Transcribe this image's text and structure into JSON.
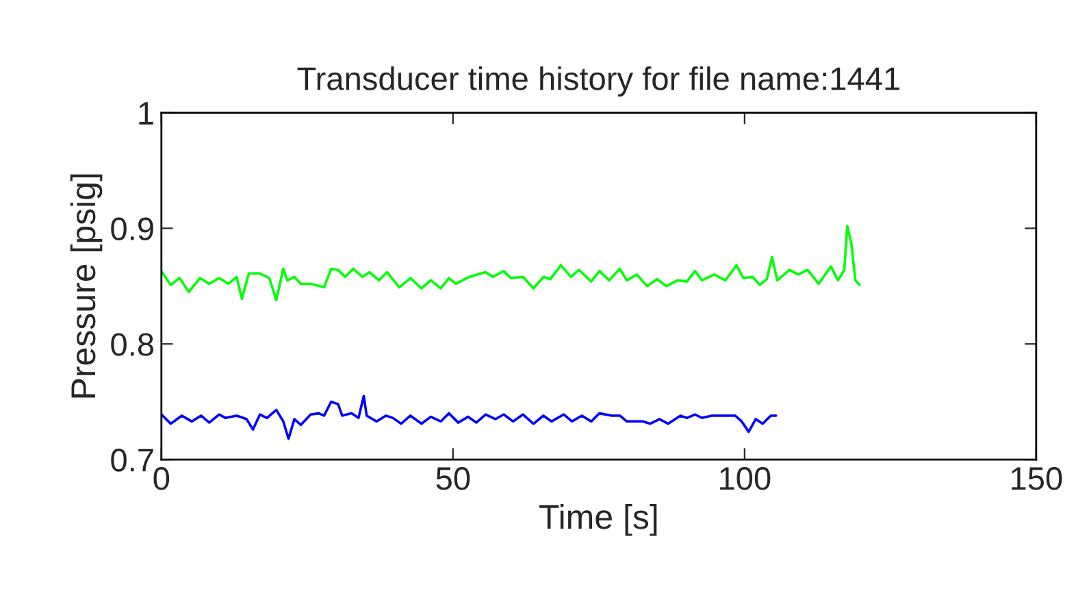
{
  "chart_data": {
    "type": "line",
    "title": "Transducer time history for file name:1441",
    "xlabel": "Time [s]",
    "ylabel": "Pressure [psig]",
    "xlim": [
      0,
      150
    ],
    "xticks": [
      0,
      50,
      100,
      150
    ],
    "ylim": [
      0.7,
      1
    ],
    "yticks": [
      0.7,
      0.8,
      0.9,
      1
    ],
    "grid": false,
    "line_style": "solid",
    "series": [
      {
        "color": "#00ff00",
        "x": [
          0,
          1.6,
          3.1,
          4.7,
          6.6,
          8.2,
          9.9,
          11.5,
          12.9,
          13.8,
          15.0,
          16.9,
          18.5,
          19.7,
          20.9,
          21.6,
          22.8,
          23.9,
          25.6,
          27.9,
          29.1,
          30.3,
          31.5,
          32.9,
          34.5,
          35.7,
          37.3,
          38.7,
          40.8,
          42.7,
          44.6,
          46.2,
          47.9,
          49.3,
          50.5,
          52.8,
          55.6,
          56.8,
          58.7,
          59.9,
          62.0,
          63.8,
          65.5,
          66.7,
          68.5,
          70.2,
          71.6,
          73.7,
          75.1,
          76.8,
          78.6,
          79.8,
          81.5,
          83.3,
          85.0,
          86.6,
          88.5,
          90.1,
          91.5,
          92.7,
          94.8,
          96.7,
          98.6,
          99.8,
          101.4,
          102.6,
          103.8,
          104.7,
          105.6,
          107.7,
          109.2,
          110.8,
          112.7,
          114.8,
          116.0,
          117.1,
          117.6,
          118.3,
          119.0,
          119.7
        ],
        "values": [
          0.863,
          0.851,
          0.857,
          0.845,
          0.857,
          0.852,
          0.857,
          0.852,
          0.858,
          0.839,
          0.861,
          0.861,
          0.857,
          0.838,
          0.865,
          0.855,
          0.858,
          0.852,
          0.852,
          0.849,
          0.865,
          0.864,
          0.858,
          0.865,
          0.858,
          0.862,
          0.855,
          0.862,
          0.849,
          0.857,
          0.848,
          0.855,
          0.848,
          0.857,
          0.852,
          0.858,
          0.862,
          0.858,
          0.863,
          0.857,
          0.858,
          0.848,
          0.858,
          0.856,
          0.868,
          0.858,
          0.864,
          0.854,
          0.863,
          0.855,
          0.865,
          0.855,
          0.86,
          0.85,
          0.856,
          0.85,
          0.855,
          0.854,
          0.863,
          0.855,
          0.86,
          0.855,
          0.868,
          0.857,
          0.858,
          0.851,
          0.856,
          0.875,
          0.855,
          0.864,
          0.86,
          0.864,
          0.852,
          0.867,
          0.855,
          0.864,
          0.902,
          0.887,
          0.855,
          0.851
        ]
      },
      {
        "color": "#0000ff",
        "x": [
          0,
          1.6,
          3.5,
          5.2,
          6.8,
          8.2,
          9.9,
          11.0,
          12.9,
          14.6,
          15.7,
          16.9,
          18.1,
          19.7,
          20.9,
          21.8,
          22.8,
          23.9,
          25.6,
          27.0,
          27.9,
          29.1,
          30.3,
          31.0,
          32.6,
          33.8,
          34.7,
          35.2,
          36.9,
          38.5,
          39.7,
          41.1,
          42.7,
          44.6,
          46.2,
          47.9,
          49.3,
          50.9,
          52.6,
          54.0,
          55.6,
          57.3,
          58.7,
          60.3,
          62.0,
          63.8,
          65.5,
          66.9,
          69.0,
          70.4,
          72.1,
          73.7,
          75.1,
          77.2,
          78.6,
          79.8,
          82.6,
          83.8,
          85.4,
          86.9,
          89.0,
          90.1,
          91.5,
          92.7,
          94.4,
          98.4,
          99.5,
          100.7,
          101.9,
          103.1,
          104.5,
          105.4
        ],
        "values": [
          0.739,
          0.731,
          0.738,
          0.733,
          0.738,
          0.732,
          0.739,
          0.736,
          0.738,
          0.735,
          0.726,
          0.739,
          0.736,
          0.743,
          0.733,
          0.718,
          0.735,
          0.73,
          0.739,
          0.74,
          0.738,
          0.75,
          0.748,
          0.738,
          0.74,
          0.736,
          0.755,
          0.738,
          0.733,
          0.738,
          0.736,
          0.731,
          0.738,
          0.731,
          0.737,
          0.733,
          0.74,
          0.732,
          0.737,
          0.732,
          0.739,
          0.735,
          0.739,
          0.733,
          0.739,
          0.731,
          0.738,
          0.733,
          0.739,
          0.733,
          0.738,
          0.733,
          0.74,
          0.738,
          0.738,
          0.733,
          0.733,
          0.731,
          0.735,
          0.731,
          0.738,
          0.736,
          0.739,
          0.736,
          0.738,
          0.738,
          0.733,
          0.724,
          0.735,
          0.731,
          0.738,
          0.738
        ]
      }
    ]
  }
}
